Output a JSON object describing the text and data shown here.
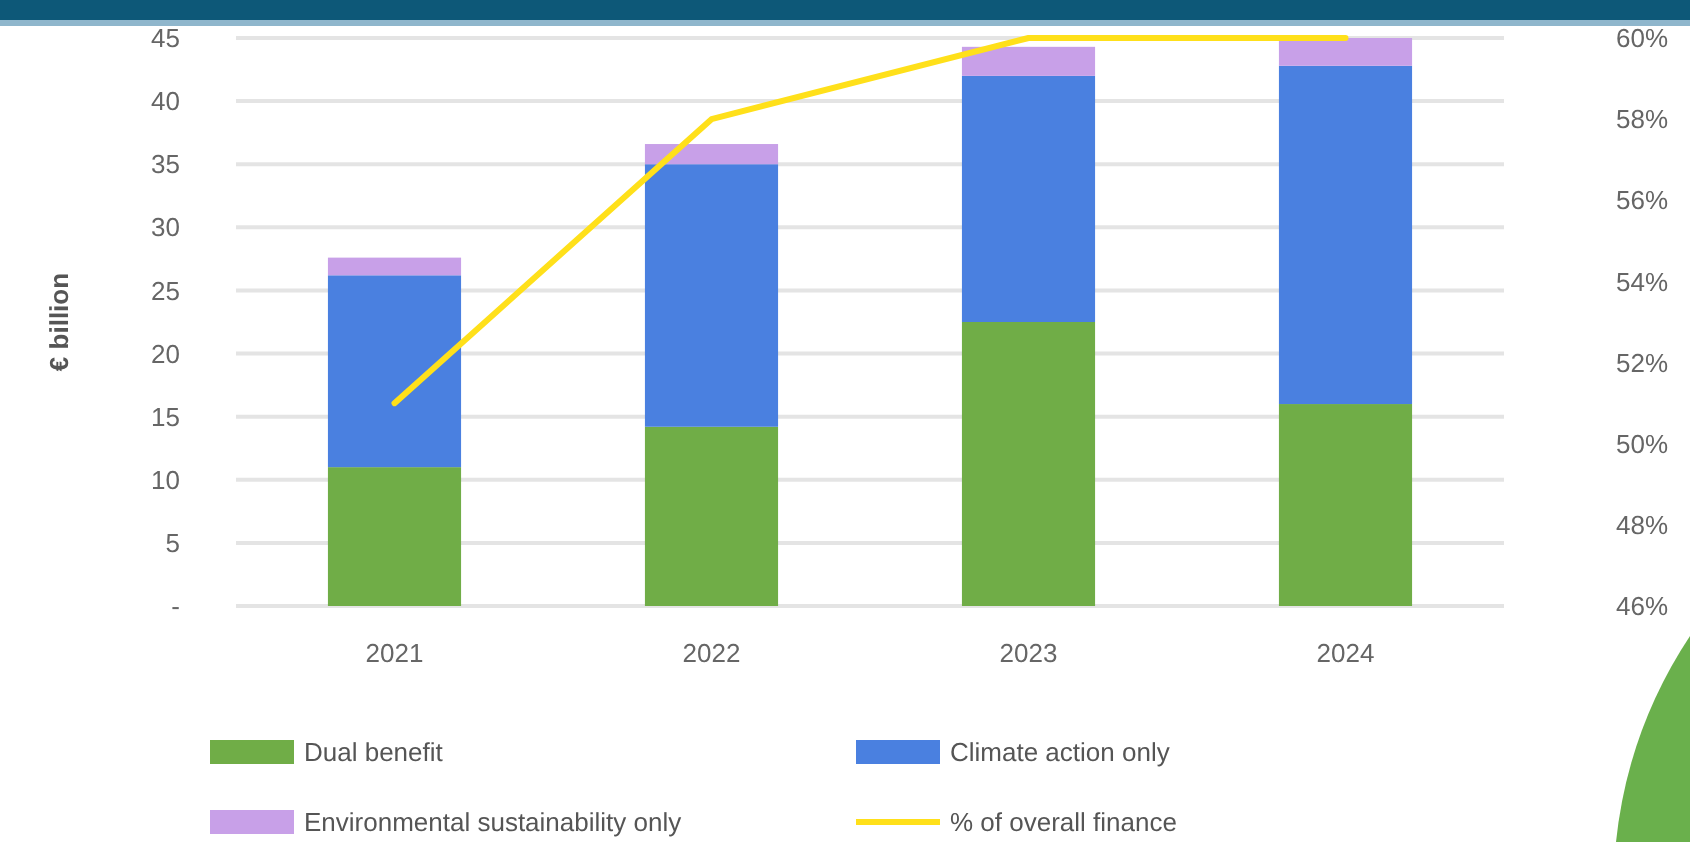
{
  "chart_data": {
    "type": "bar",
    "stacked": true,
    "categories": [
      "2021",
      "2022",
      "2023",
      "2024"
    ],
    "ylabel": "€ billion",
    "ylim": [
      0,
      45
    ],
    "yticks": [
      {
        "value": 0,
        "label": "-"
      },
      5,
      10,
      15,
      20,
      25,
      30,
      35,
      40,
      45
    ],
    "y2lim": [
      46,
      60
    ],
    "y2ticks": [
      {
        "value": 46,
        "label": "46%"
      },
      {
        "value": 48,
        "label": "48%"
      },
      {
        "value": 50,
        "label": "50%"
      },
      {
        "value": 52,
        "label": "52%"
      },
      {
        "value": 54,
        "label": "54%"
      },
      {
        "value": 56,
        "label": "56%"
      },
      {
        "value": 58,
        "label": "58%"
      },
      {
        "value": 60,
        "label": "60%"
      }
    ],
    "grid": "y",
    "legend": "bottom",
    "marker": "none",
    "series": [
      {
        "name": "Dual benefit",
        "color": "#70ad47",
        "values": [
          11,
          14.2,
          22.5,
          16
        ]
      },
      {
        "name": "Climate action only",
        "color": "#4a80e0",
        "values": [
          15.2,
          20.8,
          19.5,
          26.8
        ]
      },
      {
        "name": "Environmental sustainability only",
        "color": "#c8a0e8",
        "values": [
          1.4,
          1.6,
          2.3,
          2.2
        ]
      },
      {
        "name": "% of overall finance",
        "color": "#ffe01a",
        "type": "line",
        "axis": "y2",
        "values": [
          51,
          58,
          60,
          60
        ]
      }
    ]
  }
}
